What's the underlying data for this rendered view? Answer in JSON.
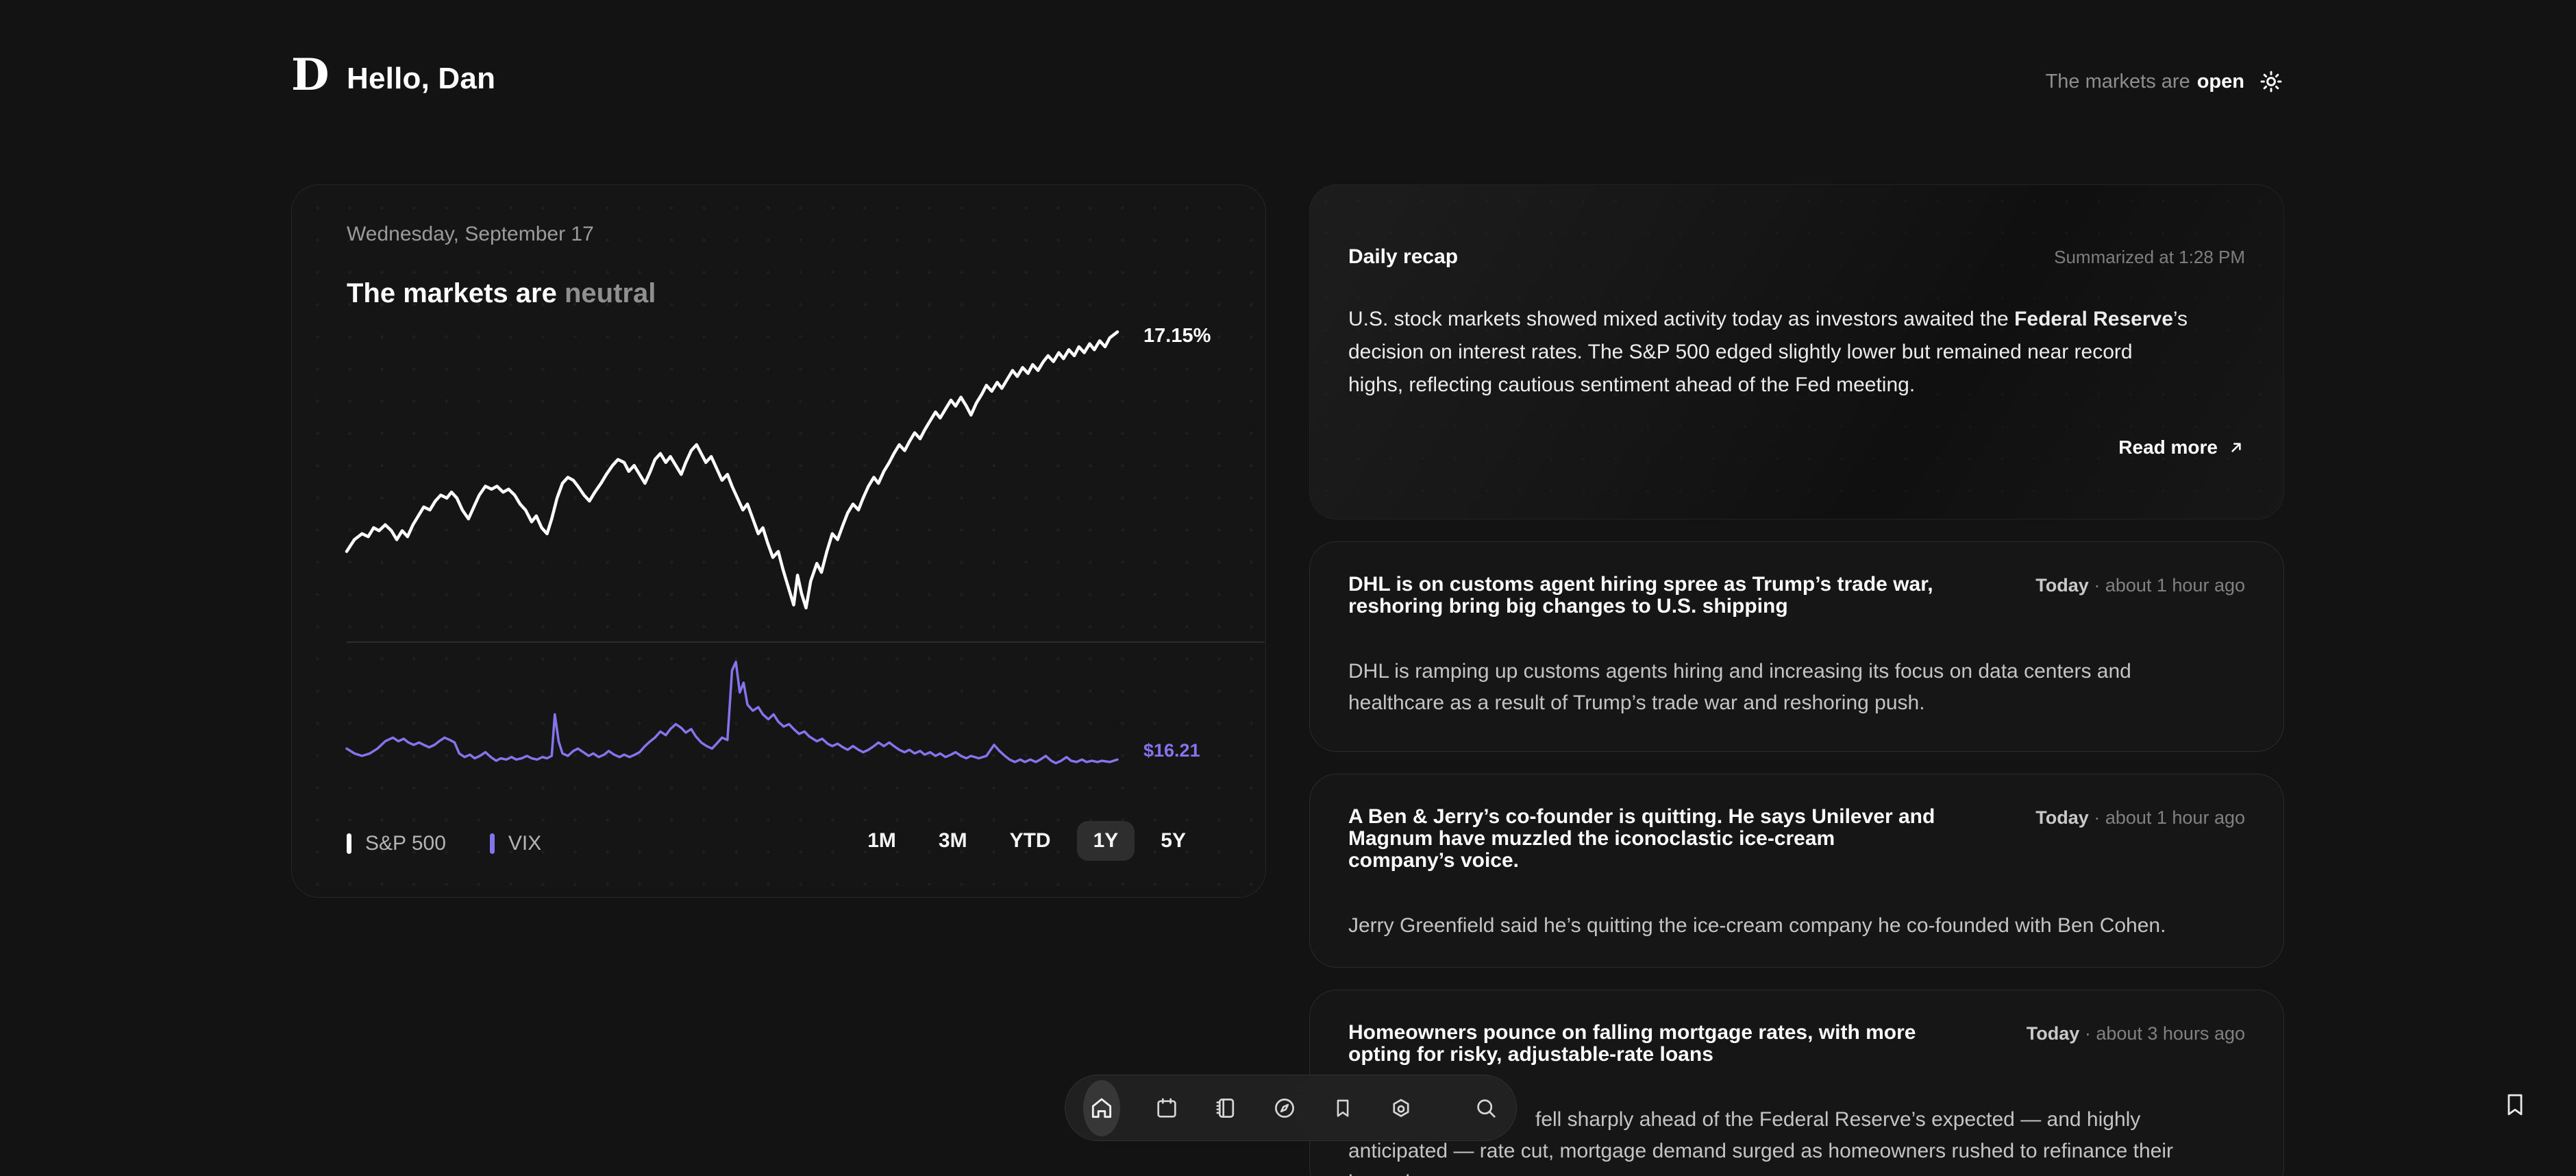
{
  "header": {
    "logo_letter": "D",
    "greeting": "Hello, Dan",
    "market_status_prefix": "The markets are",
    "market_status": "open",
    "status_icon": "sun-icon"
  },
  "market_card": {
    "date": "Wednesday, September 17",
    "headline_prefix": "The markets are ",
    "headline_status": "neutral",
    "sp_change_label": "17.15%",
    "vix_price_label": "$16.21",
    "legend": [
      {
        "label": "S&P 500",
        "color": "#ffffff"
      },
      {
        "label": "VIX",
        "color": "#8474ee"
      }
    ],
    "ranges": [
      "1M",
      "3M",
      "YTD",
      "1Y",
      "5Y"
    ],
    "selected_range": "1Y"
  },
  "chart_data": [
    {
      "type": "line",
      "name": "S&P 500",
      "timeframe": "1Y",
      "end_label": "17.15%",
      "end_value": 17.15,
      "unit": "percent-change",
      "color": "#ffffff",
      "x_range": [
        0,
        100
      ],
      "y_range": [
        0,
        100
      ],
      "grid": "dotted",
      "points": [
        [
          0,
          22
        ],
        [
          1,
          26
        ],
        [
          2,
          28
        ],
        [
          2.8,
          27
        ],
        [
          3.5,
          30
        ],
        [
          4.2,
          29
        ],
        [
          5,
          31
        ],
        [
          5.8,
          29
        ],
        [
          6.5,
          26
        ],
        [
          7.2,
          29
        ],
        [
          7.9,
          27
        ],
        [
          8.6,
          31
        ],
        [
          9.3,
          34
        ],
        [
          10,
          37
        ],
        [
          10.8,
          36
        ],
        [
          11.5,
          39
        ],
        [
          12.2,
          41
        ],
        [
          13,
          40
        ],
        [
          13.6,
          42
        ],
        [
          14.3,
          40
        ],
        [
          15,
          36
        ],
        [
          15.8,
          33
        ],
        [
          16.5,
          37
        ],
        [
          17.2,
          41
        ],
        [
          18,
          44
        ],
        [
          18.8,
          43
        ],
        [
          19.5,
          44
        ],
        [
          20.3,
          42
        ],
        [
          21,
          43
        ],
        [
          21.8,
          41
        ],
        [
          22.5,
          38
        ],
        [
          23.2,
          36
        ],
        [
          24,
          32
        ],
        [
          24.6,
          34
        ],
        [
          25.3,
          30
        ],
        [
          26,
          28
        ],
        [
          26.6,
          33
        ],
        [
          27.3,
          40
        ],
        [
          28,
          45
        ],
        [
          28.7,
          47
        ],
        [
          29.4,
          46
        ],
        [
          30,
          44
        ],
        [
          30.8,
          41
        ],
        [
          31.5,
          39
        ],
        [
          32.2,
          42
        ],
        [
          33,
          45
        ],
        [
          33.7,
          48
        ],
        [
          34.5,
          51
        ],
        [
          35.2,
          53
        ],
        [
          36,
          52
        ],
        [
          36.6,
          49
        ],
        [
          37.3,
          51
        ],
        [
          38,
          48
        ],
        [
          38.7,
          45
        ],
        [
          39.4,
          49
        ],
        [
          40,
          53
        ],
        [
          40.7,
          55
        ],
        [
          41.4,
          52
        ],
        [
          42,
          54
        ],
        [
          42.7,
          51
        ],
        [
          43.4,
          48
        ],
        [
          44,
          52
        ],
        [
          44.7,
          56
        ],
        [
          45.4,
          58
        ],
        [
          46,
          55
        ],
        [
          46.6,
          52
        ],
        [
          47.3,
          54
        ],
        [
          48,
          50
        ],
        [
          48.7,
          46
        ],
        [
          49.4,
          48
        ],
        [
          50,
          44
        ],
        [
          50.7,
          40
        ],
        [
          51.4,
          36
        ],
        [
          52,
          38
        ],
        [
          52.7,
          33
        ],
        [
          53.4,
          28
        ],
        [
          54,
          30
        ],
        [
          54.6,
          25
        ],
        [
          55.3,
          20
        ],
        [
          56,
          22
        ],
        [
          56.6,
          16
        ],
        [
          57.3,
          10
        ],
        [
          58,
          4
        ],
        [
          58.5,
          14
        ],
        [
          59,
          8
        ],
        [
          59.6,
          3
        ],
        [
          60.2,
          12
        ],
        [
          61,
          18
        ],
        [
          61.6,
          15
        ],
        [
          62.3,
          22
        ],
        [
          63,
          28
        ],
        [
          63.7,
          26
        ],
        [
          64.4,
          31
        ],
        [
          65,
          35
        ],
        [
          65.7,
          38
        ],
        [
          66.4,
          36
        ],
        [
          67,
          40
        ],
        [
          67.7,
          44
        ],
        [
          68.4,
          47
        ],
        [
          69,
          45
        ],
        [
          69.7,
          49
        ],
        [
          70.4,
          52
        ],
        [
          71,
          55
        ],
        [
          71.7,
          58
        ],
        [
          72.4,
          56
        ],
        [
          73,
          59
        ],
        [
          73.7,
          62
        ],
        [
          74.4,
          60
        ],
        [
          75,
          63
        ],
        [
          75.7,
          66
        ],
        [
          76.4,
          69
        ],
        [
          77,
          67
        ],
        [
          77.7,
          70
        ],
        [
          78.4,
          73
        ],
        [
          79,
          71
        ],
        [
          79.7,
          74
        ],
        [
          80.4,
          71
        ],
        [
          81,
          68
        ],
        [
          81.7,
          72
        ],
        [
          82.4,
          75
        ],
        [
          83,
          78
        ],
        [
          83.7,
          76
        ],
        [
          84.4,
          79
        ],
        [
          85,
          77
        ],
        [
          85.7,
          80
        ],
        [
          86.4,
          83
        ],
        [
          87,
          81
        ],
        [
          87.7,
          84
        ],
        [
          88.4,
          82
        ],
        [
          89,
          85
        ],
        [
          89.7,
          83
        ],
        [
          90.4,
          86
        ],
        [
          91,
          88
        ],
        [
          91.7,
          86
        ],
        [
          92.4,
          89
        ],
        [
          93,
          87
        ],
        [
          93.7,
          90
        ],
        [
          94.4,
          88
        ],
        [
          95,
          91
        ],
        [
          95.7,
          89
        ],
        [
          96.4,
          92
        ],
        [
          97,
          90
        ],
        [
          97.7,
          93
        ],
        [
          98.4,
          91
        ],
        [
          99,
          94
        ],
        [
          100,
          96
        ]
      ]
    },
    {
      "type": "line",
      "name": "VIX",
      "timeframe": "1Y",
      "end_label": "$16.21",
      "end_value": 16.21,
      "unit": "usd",
      "color": "#8474ee",
      "x_range": [
        0,
        100
      ],
      "y_range": [
        0,
        100
      ],
      "grid": "dotted",
      "points": [
        [
          0,
          24
        ],
        [
          1,
          20
        ],
        [
          2,
          18
        ],
        [
          3,
          20
        ],
        [
          4,
          24
        ],
        [
          5,
          30
        ],
        [
          6,
          33
        ],
        [
          6.7,
          30
        ],
        [
          7.4,
          32
        ],
        [
          8,
          29
        ],
        [
          8.7,
          27
        ],
        [
          9.4,
          29
        ],
        [
          10,
          27
        ],
        [
          10.7,
          25
        ],
        [
          11.4,
          27
        ],
        [
          12,
          30
        ],
        [
          12.7,
          33
        ],
        [
          13.4,
          31
        ],
        [
          14,
          29
        ],
        [
          14.6,
          20
        ],
        [
          15.3,
          17
        ],
        [
          16,
          19
        ],
        [
          16.6,
          16
        ],
        [
          17.3,
          18
        ],
        [
          18,
          21
        ],
        [
          18.7,
          17
        ],
        [
          19.4,
          14
        ],
        [
          20,
          16
        ],
        [
          20.7,
          15
        ],
        [
          21.4,
          17
        ],
        [
          22,
          15
        ],
        [
          22.7,
          16
        ],
        [
          23.4,
          18
        ],
        [
          24,
          16
        ],
        [
          24.7,
          15
        ],
        [
          25.4,
          17
        ],
        [
          26,
          16
        ],
        [
          26.6,
          18
        ],
        [
          27,
          52
        ],
        [
          27.5,
          30
        ],
        [
          28,
          20
        ],
        [
          28.7,
          18
        ],
        [
          29.4,
          22
        ],
        [
          30,
          24
        ],
        [
          30.7,
          21
        ],
        [
          31.4,
          18
        ],
        [
          32,
          20
        ],
        [
          32.7,
          17
        ],
        [
          33.4,
          19
        ],
        [
          34,
          22
        ],
        [
          34.7,
          19
        ],
        [
          35.4,
          17
        ],
        [
          36,
          19
        ],
        [
          36.7,
          17
        ],
        [
          37.4,
          19
        ],
        [
          38,
          21
        ],
        [
          38.7,
          26
        ],
        [
          39.4,
          30
        ],
        [
          40,
          33
        ],
        [
          40.7,
          38
        ],
        [
          41.4,
          35
        ],
        [
          42,
          40
        ],
        [
          42.7,
          44
        ],
        [
          43.4,
          41
        ],
        [
          44,
          37
        ],
        [
          44.7,
          40
        ],
        [
          45.3,
          34
        ],
        [
          46,
          29
        ],
        [
          46.7,
          26
        ],
        [
          47.4,
          24
        ],
        [
          48,
          28
        ],
        [
          48.7,
          33
        ],
        [
          49.4,
          31
        ],
        [
          50,
          88
        ],
        [
          50.5,
          95
        ],
        [
          51,
          70
        ],
        [
          51.5,
          78
        ],
        [
          52,
          60
        ],
        [
          52.7,
          55
        ],
        [
          53.4,
          58
        ],
        [
          54,
          52
        ],
        [
          54.7,
          48
        ],
        [
          55.4,
          52
        ],
        [
          56,
          46
        ],
        [
          56.7,
          42
        ],
        [
          57.4,
          44
        ],
        [
          58,
          40
        ],
        [
          58.7,
          36
        ],
        [
          59.4,
          38
        ],
        [
          60,
          34
        ],
        [
          61,
          30
        ],
        [
          61.7,
          32
        ],
        [
          62.4,
          28
        ],
        [
          63,
          26
        ],
        [
          63.7,
          28
        ],
        [
          64.4,
          25
        ],
        [
          65,
          23
        ],
        [
          65.7,
          26
        ],
        [
          66.4,
          23
        ],
        [
          67,
          21
        ],
        [
          67.7,
          23
        ],
        [
          68.4,
          26
        ],
        [
          69,
          29
        ],
        [
          69.7,
          26
        ],
        [
          70.4,
          29
        ],
        [
          71,
          26
        ],
        [
          71.7,
          23
        ],
        [
          72.4,
          21
        ],
        [
          73,
          23
        ],
        [
          73.7,
          20
        ],
        [
          74.4,
          22
        ],
        [
          75,
          19
        ],
        [
          75.7,
          21
        ],
        [
          76.4,
          18
        ],
        [
          77,
          20
        ],
        [
          77.7,
          17
        ],
        [
          78.4,
          19
        ],
        [
          79,
          21
        ],
        [
          79.7,
          18
        ],
        [
          80.4,
          16
        ],
        [
          81,
          18
        ],
        [
          82,
          16
        ],
        [
          83,
          18
        ],
        [
          84,
          27
        ],
        [
          84.7,
          22
        ],
        [
          85.4,
          18
        ],
        [
          86,
          15
        ],
        [
          86.7,
          13
        ],
        [
          87.4,
          15
        ],
        [
          88,
          13
        ],
        [
          88.7,
          15
        ],
        [
          89.4,
          13
        ],
        [
          90,
          15
        ],
        [
          90.7,
          18
        ],
        [
          91.4,
          14
        ],
        [
          92,
          12
        ],
        [
          92.7,
          14
        ],
        [
          93.4,
          17
        ],
        [
          94,
          14
        ],
        [
          94.7,
          13
        ],
        [
          95.4,
          15
        ],
        [
          96,
          13
        ],
        [
          96.7,
          14
        ],
        [
          97.4,
          13
        ],
        [
          98,
          14
        ],
        [
          99,
          13
        ],
        [
          100,
          15
        ]
      ]
    }
  ],
  "daily_recap": {
    "title": "Daily recap",
    "summarized_at": "Summarized at 1:28 PM",
    "body_before": "U.S. stock markets showed mixed activity today as investors awaited the ",
    "body_bold": "Federal Reserve",
    "body_after": "’s\ndecision on interest rates. The S&P 500 edged slightly lower but remained near record\nhighs, reflecting cautious sentiment ahead of the Fed meeting.",
    "read_more": "Read more"
  },
  "news": [
    {
      "title": "DHL is on customs agent hiring spree as Trump’s trade war,\nreshoring bring big changes to U.S. shipping",
      "day": "Today",
      "separator": " · ",
      "time_ago": "about 1 hour ago",
      "body": "DHL is ramping up customs agents hiring and increasing its focus on data centers and\nhealthcare as a result of Trump’s trade war and reshoring push."
    },
    {
      "title": "A Ben & Jerry’s co-founder is quitting. He says Unilever and\nMagnum have muzzled the iconoclastic ice-cream\ncompany’s voice.",
      "day": "Today",
      "separator": " · ",
      "time_ago": "about 1 hour ago",
      "body": "Jerry Greenfield said he’s quitting the ice-cream company he co-founded with Ben Cohen."
    },
    {
      "title": "Homeowners pounce on falling mortgage rates, with more\nopting for risky, adjustable-rate loans",
      "day": "Today",
      "separator": " · ",
      "time_ago": "about 3 hours ago",
      "body": "fell sharply ahead of the Federal Reserve’s expected — and highly\nanticipated — rate cut, mortgage demand surged as homeowners rushed to refinance their\nhome loans."
    }
  ],
  "dock": {
    "active": "home",
    "items": [
      "home",
      "calendar",
      "journal",
      "compass",
      "bookmarks",
      "settings",
      "search"
    ]
  }
}
